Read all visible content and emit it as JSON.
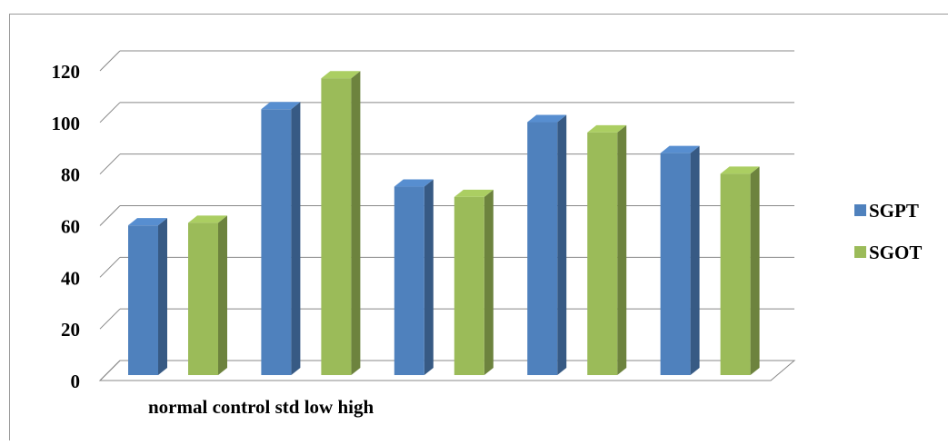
{
  "chart_data": {
    "type": "bar3d",
    "categories": [
      null,
      null,
      null,
      null,
      null
    ],
    "x_label": "normal control std low high",
    "series": [
      {
        "name": "SGPT",
        "color": "#4f81bd",
        "values": [
          58,
          103,
          73,
          98,
          86
        ]
      },
      {
        "name": "SGOT",
        "color": "#9bbb59",
        "values": [
          59,
          115,
          69,
          94,
          78
        ]
      }
    ],
    "ylim": [
      0,
      120
    ],
    "yticks": [
      0,
      20,
      40,
      60,
      80,
      100,
      120
    ],
    "grid": true,
    "legend": "right"
  }
}
